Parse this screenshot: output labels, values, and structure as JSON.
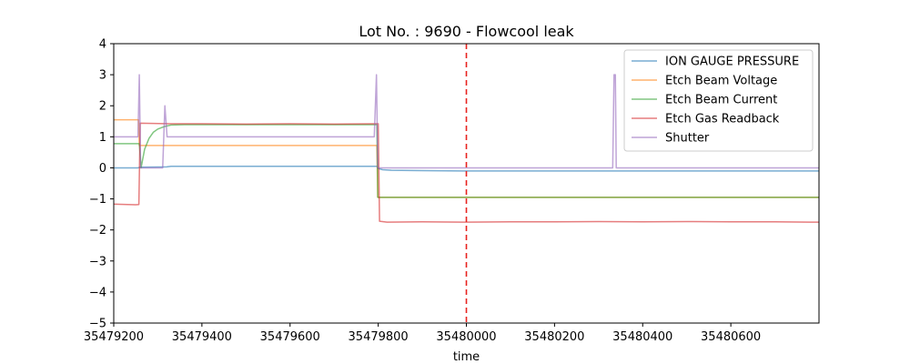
{
  "chart_data": {
    "type": "line",
    "title": "Lot No. : 9690 - Flowcool leak",
    "xlabel": "time",
    "ylabel": "",
    "xlim": [
      35479200,
      35480800
    ],
    "ylim": [
      -5,
      4
    ],
    "xticks": [
      35479200,
      35479400,
      35479600,
      35479800,
      35480000,
      35480200,
      35480400,
      35480600
    ],
    "xtick_labels": [
      "35479200",
      "35479400",
      "35479600",
      "35479800",
      "35480000",
      "35480200",
      "35480400",
      "35480600"
    ],
    "yticks": [
      -5,
      -4,
      -3,
      -2,
      -1,
      0,
      1,
      2,
      3,
      4
    ],
    "ytick_labels": [
      "−5",
      "−4",
      "−3",
      "−2",
      "−1",
      "0",
      "1",
      "2",
      "3",
      "4"
    ],
    "grid": false,
    "legend_position": "top-right",
    "vline": {
      "x": 35480000,
      "color": "#e8231f",
      "style": "dashed"
    },
    "series": [
      {
        "name": "ION GAUGE PRESSURE",
        "color": "#1f77b4",
        "x": [
          35479200,
          35479255,
          35479260,
          35479320,
          35479330,
          35479790,
          35479797,
          35479800,
          35479810,
          35479830,
          35479900,
          35480000,
          35480200,
          35480400,
          35480600,
          35480800
        ],
        "y": [
          0.0,
          0.0,
          0.02,
          0.03,
          0.05,
          0.05,
          0.05,
          -0.02,
          -0.06,
          -0.08,
          -0.09,
          -0.1,
          -0.1,
          -0.1,
          -0.1,
          -0.1
        ]
      },
      {
        "name": "Etch Beam Voltage",
        "color": "#ff7f0e",
        "x": [
          35479200,
          35479256,
          35479258,
          35479797,
          35479799,
          35480800
        ],
        "y": [
          1.55,
          1.55,
          0.72,
          0.72,
          -0.95,
          -0.95
        ]
      },
      {
        "name": "Etch Beam Current",
        "color": "#2ca02c",
        "x": [
          35479200,
          35479258,
          35479262,
          35479270,
          35479280,
          35479290,
          35479300,
          35479315,
          35479330,
          35479360,
          35479797,
          35479799,
          35480800
        ],
        "y": [
          0.78,
          0.78,
          0.0,
          0.6,
          0.95,
          1.15,
          1.25,
          1.33,
          1.38,
          1.39,
          1.39,
          -0.95,
          -0.95
        ]
      },
      {
        "name": "Etch Gas Readback",
        "color": "#d62728",
        "x": [
          35479200,
          35479250,
          35479257,
          35479260,
          35479330,
          35479400,
          35479500,
          35479600,
          35479700,
          35479795,
          35479800,
          35479803,
          35479820,
          35479900,
          35480000,
          35480100,
          35480200,
          35480300,
          35480400,
          35480500,
          35480600,
          35480700,
          35480800
        ],
        "y": [
          -1.17,
          -1.19,
          -1.18,
          1.44,
          1.42,
          1.42,
          1.41,
          1.42,
          1.41,
          1.42,
          1.42,
          -1.72,
          -1.75,
          -1.74,
          -1.75,
          -1.74,
          -1.74,
          -1.73,
          -1.74,
          -1.73,
          -1.74,
          -1.74,
          -1.75
        ]
      },
      {
        "name": "Shutter",
        "color": "#9467bd",
        "x": [
          35479200,
          35479255,
          35479258,
          35479261,
          35479265,
          35479311,
          35479316,
          35479321,
          35479791,
          35479796,
          35479799,
          35480332,
          35480335,
          35480338,
          35480340,
          35480800
        ],
        "y": [
          1.0,
          1.0,
          3.0,
          0.0,
          0.0,
          0.0,
          2.0,
          1.0,
          1.0,
          3.0,
          0.0,
          0.0,
          3.0,
          3.0,
          0.0,
          0.0
        ]
      }
    ]
  }
}
